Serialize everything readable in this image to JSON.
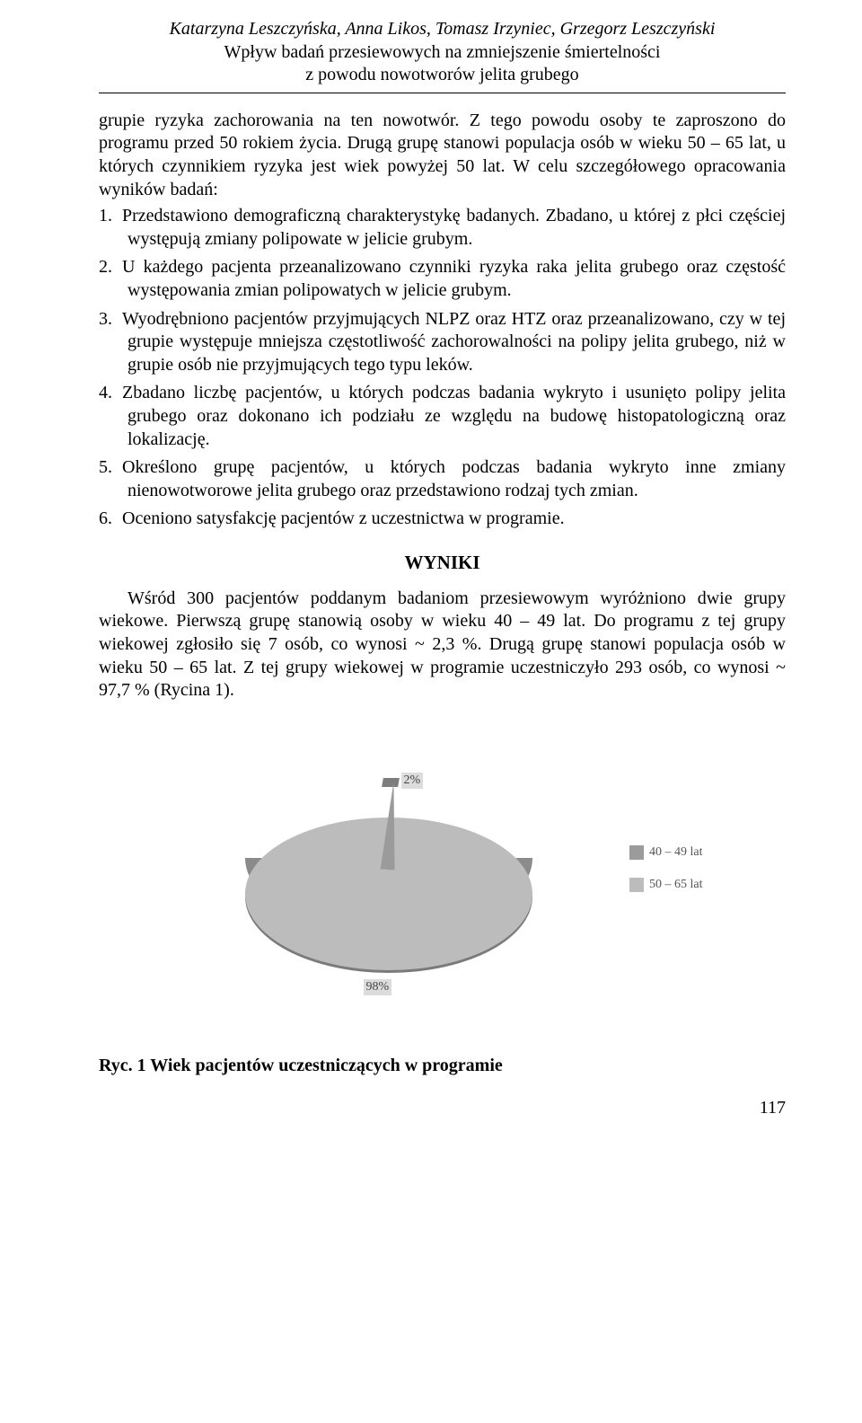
{
  "header": {
    "authors": "Katarzyna Leszczyńska, Anna Likos, Tomasz Irzyniec, Grzegorz Leszczyński",
    "title_l1": "Wpływ badań przesiewowych na zmniejszenie śmiertelności",
    "title_l2": "z powodu nowotworów jelita grubego"
  },
  "intro": "grupie ryzyka zachorowania na ten nowotwór. Z tego powodu osoby te zaproszono do programu przed 50 rokiem życia. Drugą grupę stanowi populacja osób w wieku 50 – 65 lat, u których czynnikiem ryzyka jest wiek powyżej 50 lat. W celu szczegółowego opracowania wyników badań:",
  "list": [
    "Przedstawiono demograficzną charakterystykę badanych. Zbadano, u której z płci częściej występują zmiany polipowate w jelicie grubym.",
    "U każdego pacjenta przeanalizowano czynniki ryzyka raka jelita grubego oraz częstość występowania zmian polipowatych w jelicie grubym.",
    "Wyodrębniono pacjentów przyjmujących NLPZ oraz HTZ oraz przeanalizowano, czy w tej grupie występuje mniejsza częstotliwość zachorowalności na polipy jelita grubego, niż w grupie osób nie przyjmujących tego typu leków.",
    "Zbadano liczbę pacjentów, u których podczas badania wykryto i usunięto polipy jelita grubego oraz dokonano ich podziału ze względu na budowę histopatologiczną oraz lokalizację.",
    "Określono grupę pacjentów, u których podczas badania wykryto inne zmiany nienowotworowe jelita grubego oraz przedstawiono rodzaj tych zmian.",
    "Oceniono satysfakcję pacjentów z uczestnictwa w programie."
  ],
  "results_heading": "WYNIKI",
  "results_para": "Wśród 300 pacjentów poddanym badaniom przesiewowym wyróżniono dwie grupy wiekowe. Pierwszą grupę stanowią osoby w wieku 40 – 49 lat. Do programu z tej grupy wiekowej zgłosiło się 7 osób, co wynosi ~ 2,3 %. Drugą grupę stanowi populacja osób w wieku 50 – 65 lat. Z tej grupy wiekowej w programie uczestniczyło 293 osób, co wynosi ~ 97,7 % (Rycina 1).",
  "chart": {
    "type": "pie",
    "slices": [
      {
        "label": "40 – 49 lat",
        "value": 2,
        "display": "2%",
        "color": "#9b9b9b"
      },
      {
        "label": "50 – 65 lat",
        "value": 98,
        "display": "98%",
        "color": "#bcbcbc"
      }
    ],
    "side_color": "#8b8b8b",
    "shadow_color": "#7a7a7a",
    "background_color": "#ffffff",
    "label_fontsize": 14,
    "legend_fontsize": 14
  },
  "caption": "Ryc. 1 Wiek pacjentów uczestniczących w programie",
  "page_number": "117"
}
